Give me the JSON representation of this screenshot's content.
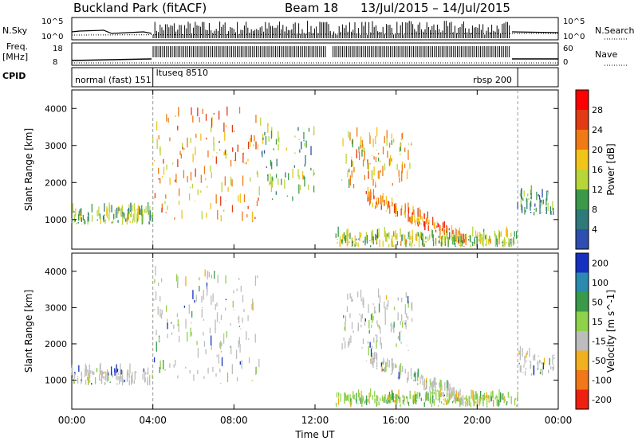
{
  "header": {
    "title": "Buckland Park (fitACF)",
    "beam": "Beam 18",
    "dates": "13/Jul/2015 – 14/Jul/2015"
  },
  "status_panels": {
    "nsky_label": "N.Sky",
    "nsky_ticks": [
      "10^5",
      "10^0"
    ],
    "nsearch_label": "N.Search",
    "nsearch_ticks": [
      "10^5",
      "10^0"
    ],
    "freq_label": "Freq.",
    "freq_unit": "[MHz]",
    "freq_ticks": [
      "18",
      "8"
    ],
    "nave_label": "Nave",
    "nave_ticks": [
      "60",
      "0"
    ],
    "cpid_label": "CPID",
    "cpid_segments": [
      {
        "label": "normal (fast) 151",
        "start_h": 0,
        "end_h": 4
      },
      {
        "label": "ltuseq 8510",
        "start_h": 4,
        "end_h": 22
      },
      {
        "label": "rbsp 200",
        "start_h": 22,
        "end_h": 24
      }
    ]
  },
  "chart_data": [
    {
      "type": "heatmap",
      "title": "",
      "xlabel": "",
      "ylabel": "Slant Range [km]",
      "xlim": [
        0,
        24
      ],
      "ylim": [
        200,
        4500
      ],
      "yticks": [
        1000,
        2000,
        3000,
        4000
      ],
      "colorbar": {
        "label": "Power [dB]",
        "ticks": [
          4,
          8,
          12,
          16,
          20,
          24,
          28
        ],
        "range": [
          0,
          32
        ]
      },
      "features": [
        {
          "name": "early near-range band",
          "x_range_h": [
            0,
            4
          ],
          "range_km": [
            850,
            1250
          ],
          "value_db": 14
        },
        {
          "name": "main patch",
          "x_range_h": [
            4,
            9.3
          ],
          "range_km": [
            900,
            3900
          ],
          "value_db": 22
        },
        {
          "name": "post-midday scatter",
          "x_range_h": [
            9.3,
            12
          ],
          "range_km": [
            1500,
            3600
          ],
          "value_db": 12
        },
        {
          "name": "late patch",
          "x_range_h": [
            13.3,
            16.8
          ],
          "range_km": [
            1800,
            3300
          ],
          "value_db": 20
        },
        {
          "name": "descending echo band",
          "x_range_h": [
            14.5,
            19.5
          ],
          "range_km": [
            400,
            1600
          ],
          "value_db": 24
        },
        {
          "name": "ground scatter near range",
          "x_range_h": [
            13,
            22
          ],
          "range_km": [
            250,
            550
          ],
          "value_db": 16
        },
        {
          "name": "end band",
          "x_range_h": [
            22,
            23.8
          ],
          "range_km": [
            1100,
            1700
          ],
          "value_db": 10
        }
      ]
    },
    {
      "type": "heatmap",
      "title": "",
      "xlabel": "Time UT",
      "ylabel": "Slant Range [km]",
      "xlim": [
        0,
        24
      ],
      "ylim": [
        200,
        4500
      ],
      "yticks": [
        1000,
        2000,
        3000,
        4000
      ],
      "xticks": [
        "00:00",
        "04:00",
        "08:00",
        "12:00",
        "16:00",
        "20:00",
        "00:00"
      ],
      "colorbar": {
        "label": "Velocity [m s^-1]",
        "ticks": [
          200,
          100,
          50,
          15,
          -15,
          -50,
          -100,
          -200
        ]
      },
      "features": [
        {
          "name": "early near-range band",
          "x_range_h": [
            0,
            4
          ],
          "range_km": [
            850,
            1250
          ],
          "value_ms": 0
        },
        {
          "name": "main patch",
          "x_range_h": [
            4,
            9.3
          ],
          "range_km": [
            900,
            3900
          ],
          "value_ms": 0
        },
        {
          "name": "late patch",
          "x_range_h": [
            13.3,
            16.8
          ],
          "range_km": [
            1800,
            3300
          ],
          "value_ms": 0
        },
        {
          "name": "descending echo band",
          "x_range_h": [
            14.5,
            19.5
          ],
          "range_km": [
            400,
            1600
          ],
          "value_ms": 0
        },
        {
          "name": "ground scatter near range",
          "x_range_h": [
            13,
            22
          ],
          "range_km": [
            250,
            550
          ],
          "value_ms": 30
        },
        {
          "name": "end band",
          "x_range_h": [
            22,
            23.8
          ],
          "range_km": [
            1100,
            1700
          ],
          "value_ms": 0
        }
      ]
    }
  ]
}
